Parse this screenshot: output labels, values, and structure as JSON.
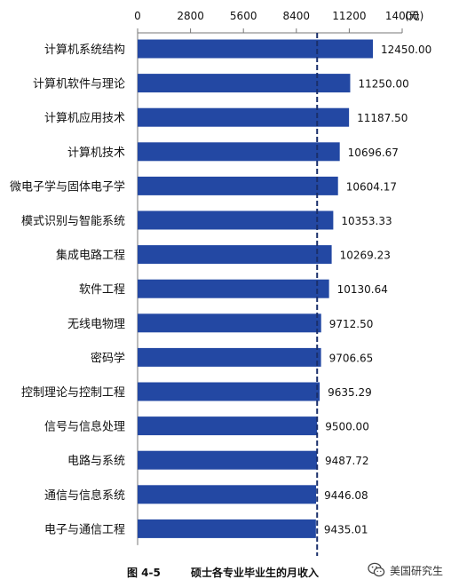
{
  "chart_data": {
    "type": "bar",
    "orientation": "horizontal",
    "categories": [
      "计算机系统结构",
      "计算机软件与理论",
      "计算机应用技术",
      "计算机技术",
      "微电子学与固体电子学",
      "模式识别与智能系统",
      "集成电路工程",
      "软件工程",
      "无线电物理",
      "密码学",
      "控制理论与控制工程",
      "信号与信息处理",
      "电路与系统",
      "通信与信息系统",
      "电子与通信工程"
    ],
    "values": [
      12450.0,
      11250.0,
      11187.5,
      10696.67,
      10604.17,
      10353.33,
      10269.23,
      10130.64,
      9712.5,
      9706.65,
      9635.29,
      9500.0,
      9487.72,
      9446.08,
      9435.01
    ],
    "value_labels": [
      "12450.00",
      "11250.00",
      "11187.50",
      "10696.67",
      "10604.17",
      "10353.33",
      "10269.23",
      "10130.64",
      "9712.50",
      "9706.65",
      "9635.29",
      "9500.00",
      "9487.72",
      "9446.08",
      "9435.01"
    ],
    "x_ticks": [
      0,
      2800,
      5600,
      8400,
      11200,
      14000
    ],
    "x_tick_labels": [
      "0",
      "2800",
      "5600",
      "8400",
      "11200",
      "14000"
    ],
    "x_unit": "(元)",
    "xlim": [
      0,
      14000
    ],
    "axis_position": "top",
    "reference_line": 9500,
    "bar_color": "#2348a3",
    "grid": false,
    "title": "",
    "xlabel": "",
    "ylabel": ""
  },
  "caption": {
    "figure_number": "图 4-5",
    "title": "硕士各专业毕业生的月收入"
  },
  "watermark": {
    "icon": "wechat-icon",
    "text": "美国研究生"
  }
}
